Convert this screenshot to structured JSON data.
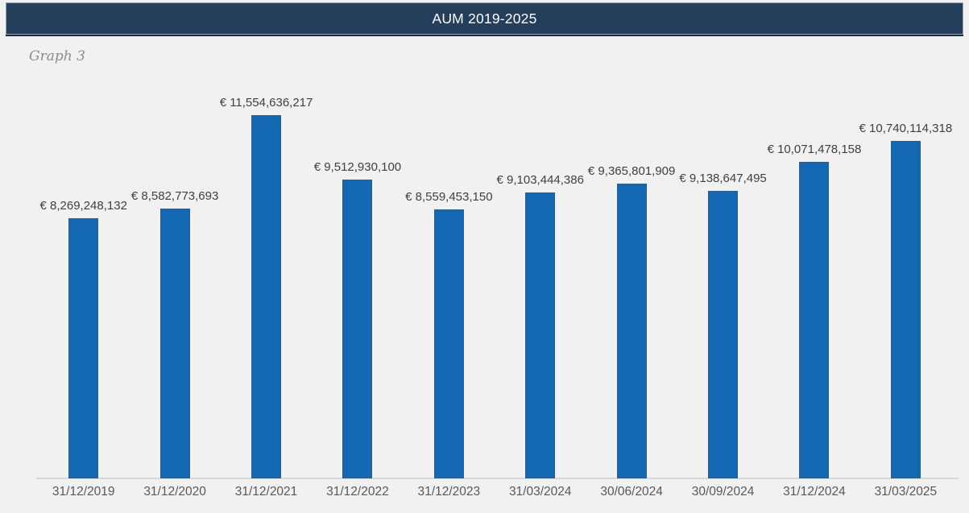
{
  "header": {
    "title": "AUM 2019-2025"
  },
  "caption": "Graph 3",
  "chart_data": {
    "type": "bar",
    "title": "AUM 2019-2025",
    "subtitle": "Graph 3",
    "categories": [
      "31/12/2019",
      "31/12/2020",
      "31/12/2021",
      "31/12/2022",
      "31/12/2023",
      "31/03/2024",
      "30/06/2024",
      "30/09/2024",
      "31/12/2024",
      "31/03/2025"
    ],
    "values": [
      8269248132,
      8582773693,
      11554636217,
      9512930100,
      8559453150,
      9103444386,
      9365801909,
      9138647495,
      10071478158,
      10740114318
    ],
    "labels": [
      "€ 8,269,248,132",
      "€ 8,582,773,693",
      "€ 11,554,636,217",
      "€ 9,512,930,100",
      "€ 8,559,453,150",
      "€ 9,103,444,386",
      "€ 9,365,801,909",
      "€ 9,138,647,495",
      "€ 10,071,478,158",
      "€ 10,740,114,318"
    ],
    "xlabel": "",
    "ylabel": "",
    "ylim": [
      0,
      11554636217
    ],
    "grid": false,
    "legend_position": "none",
    "data_labels": true,
    "bar_color": "#1268B3",
    "bar_border_color": "#2B5C8A"
  },
  "colors": {
    "header_bg": "#253E5B",
    "header_text": "#FFFFFF",
    "page_bg": "#F1F1F2",
    "axis_line": "#D6D6D6",
    "data_label_text": "#404040",
    "tick_label_text": "#595959",
    "caption_text": "#8C8C8C"
  }
}
